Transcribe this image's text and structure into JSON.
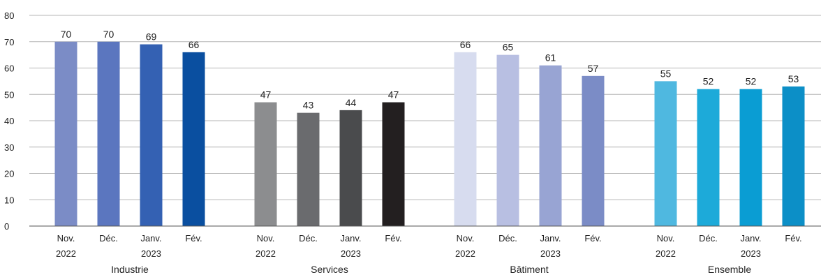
{
  "chart_data": {
    "type": "bar",
    "ylim": [
      0,
      80
    ],
    "yticks": [
      0,
      10,
      20,
      30,
      40,
      50,
      60,
      70,
      80
    ],
    "grid": true,
    "groups": [
      {
        "name": "Industrie",
        "categories": [
          [
            "Nov.",
            "2022"
          ],
          [
            "Déc.",
            ""
          ],
          [
            "Janv.",
            "2023"
          ],
          [
            "Fév.",
            ""
          ]
        ],
        "values": [
          70,
          70,
          69,
          66
        ],
        "colors": [
          "#7b8cc6",
          "#5b76bf",
          "#3461b3",
          "#0a4fa0"
        ]
      },
      {
        "name": "Services",
        "categories": [
          [
            "Nov.",
            "2022"
          ],
          [
            "Déc.",
            ""
          ],
          [
            "Janv.",
            "2023"
          ],
          [
            "Fév.",
            ""
          ]
        ],
        "values": [
          47,
          43,
          44,
          47
        ],
        "colors": [
          "#8c8d8f",
          "#6a6b6e",
          "#4a4b4d",
          "#231f20"
        ]
      },
      {
        "name": "Bâtiment",
        "categories": [
          [
            "Nov.",
            "2022"
          ],
          [
            "Déc.",
            ""
          ],
          [
            "Janv.",
            "2023"
          ],
          [
            "Fév.",
            ""
          ]
        ],
        "values": [
          66,
          65,
          61,
          57
        ],
        "colors": [
          "#d7dcef",
          "#b8bfe2",
          "#98a4d3",
          "#7b8cc6"
        ]
      },
      {
        "name": "Ensemble",
        "categories": [
          [
            "Nov.",
            "2022"
          ],
          [
            "Déc.",
            ""
          ],
          [
            "Janv.",
            "2023"
          ],
          [
            "Fév.",
            ""
          ]
        ],
        "values": [
          55,
          52,
          52,
          53
        ],
        "colors": [
          "#4fb8e0",
          "#1daad9",
          "#0a9dd3",
          "#0c8fc7"
        ]
      }
    ]
  }
}
